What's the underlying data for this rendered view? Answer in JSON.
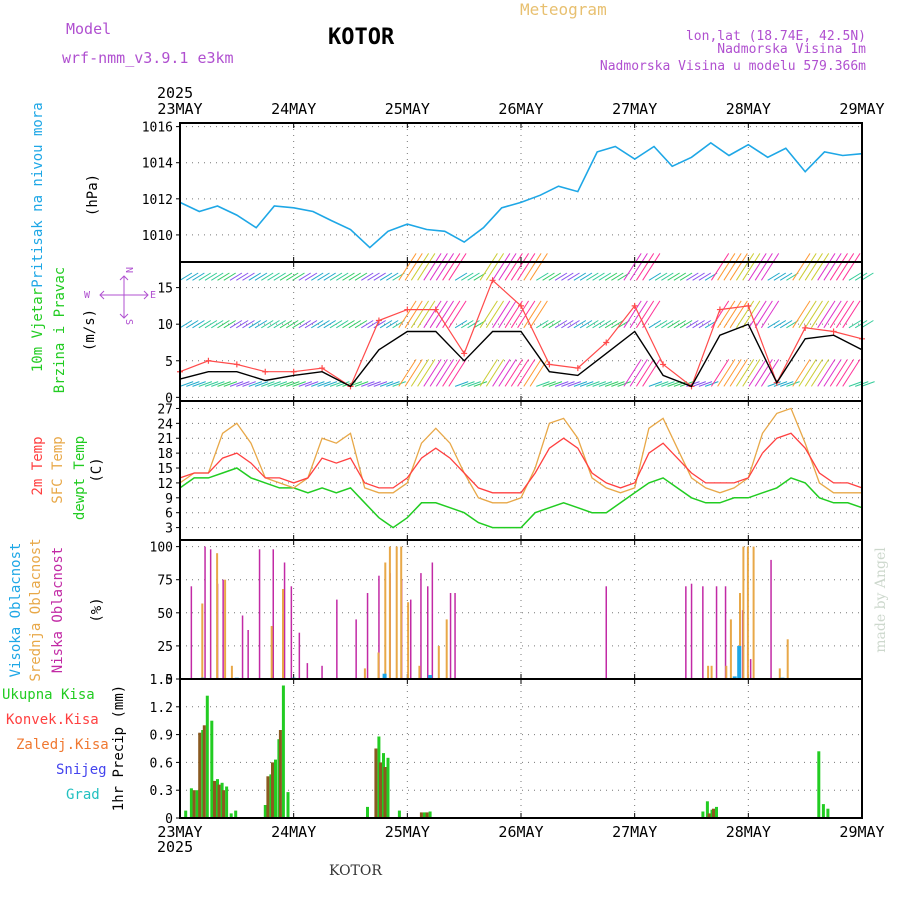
{
  "header": {
    "model_label": "Model",
    "model_name": "wrf-nmm_v3.9.1  e3km",
    "title": "KOTOR",
    "product": "Meteogram",
    "lonlat": "lon,lat (18.74E, 42.5N)",
    "elevation": "Nadmorska Visina 1m",
    "model_elevation": "Nadmorska Visina u modelu 579.366m",
    "footer_title": "KOTOR",
    "credit": "made by Angel"
  },
  "colors": {
    "pressure": "#1ea7e6",
    "wind": "#000000",
    "gust": "#ff4b4b",
    "temp2m": "#ff4040",
    "sfc": "#e8a848",
    "dewpt": "#22cc22",
    "cloud_high": "#1ea7e6",
    "cloud_mid": "#e8a848",
    "cloud_low": "#c22aa5",
    "precip_total": "#22cc22",
    "precip_conv": "#ff4040",
    "precip_frz": "#f07830",
    "precip_snow": "#4444ee",
    "precip_grad": "#22c0c0",
    "title_purple": "#b050d0",
    "meteogram_gold": "#e8c070"
  },
  "chart_data": [
    {
      "type": "line",
      "name": "pressure",
      "title_lines": [
        "Pritisak na nivou mora",
        "(hPa)"
      ],
      "ylim": [
        1008.5,
        1016.2
      ],
      "yticks": [
        1010,
        1012,
        1014,
        1016
      ],
      "x_days": [
        0,
        0.17,
        0.33,
        0.5,
        0.67,
        0.83,
        1.0,
        1.17,
        1.33,
        1.5,
        1.67,
        1.83,
        2.0,
        2.17,
        2.33,
        2.5,
        2.67,
        2.83,
        3.0,
        3.17,
        3.33,
        3.5,
        3.67,
        3.83,
        4.0,
        4.17,
        4.33,
        4.5,
        4.67,
        4.83,
        5.0,
        5.17,
        5.33,
        5.5,
        5.67,
        5.83,
        6.0
      ],
      "values": [
        1011.8,
        1011.3,
        1011.6,
        1011.1,
        1010.4,
        1011.6,
        1011.5,
        1011.3,
        1010.8,
        1010.3,
        1009.3,
        1010.2,
        1010.6,
        1010.3,
        1010.2,
        1009.6,
        1010.4,
        1011.5,
        1011.8,
        1012.2,
        1012.7,
        1012.4,
        1014.6,
        1014.9,
        1014.2,
        1014.9,
        1013.8,
        1014.3,
        1015.1,
        1014.4,
        1015.0,
        1014.3,
        1014.8,
        1013.5,
        1014.6,
        1014.4,
        1014.5
      ]
    },
    {
      "type": "line",
      "name": "wind",
      "title_lines": [
        "10m Vjetar",
        "Brzina i Pravac",
        "(m/s)"
      ],
      "ylim": [
        -0.5,
        18.5
      ],
      "yticks": [
        0,
        5,
        10,
        15
      ],
      "x_days": [
        0,
        0.25,
        0.5,
        0.75,
        1.0,
        1.25,
        1.5,
        1.75,
        2.0,
        2.25,
        2.5,
        2.75,
        3.0,
        3.25,
        3.5,
        3.75,
        4.0,
        4.25,
        4.5,
        4.75,
        5.0,
        5.25,
        5.5,
        5.75,
        6.0
      ],
      "speed": [
        2.5,
        3.5,
        3.5,
        2.3,
        3.0,
        3.5,
        1.5,
        6.5,
        9.0,
        9.0,
        5.0,
        9.0,
        9.0,
        3.5,
        3.0,
        6.0,
        9.0,
        3.0,
        1.5,
        8.5,
        10.0,
        2.0,
        8.0,
        8.5,
        6.5
      ],
      "gust": [
        3.5,
        5.0,
        4.5,
        3.5,
        3.5,
        4.0,
        1.5,
        10.5,
        12.0,
        12.0,
        6.0,
        16.0,
        12.5,
        4.5,
        4.0,
        7.5,
        12.5,
        4.5,
        1.5,
        12.0,
        12.5,
        2.0,
        9.5,
        9.0,
        8.0
      ],
      "compass": {
        "n": "N",
        "w": "W",
        "e": "E",
        "s": "S"
      }
    },
    {
      "type": "line",
      "name": "temperature",
      "title_lines": [
        "2m Temp",
        "SFC Temp",
        "dewpt Temp",
        "(C)"
      ],
      "ylim": [
        0.5,
        28.5
      ],
      "yticks": [
        3,
        6,
        9,
        12,
        15,
        18,
        21,
        24,
        27
      ],
      "x_days": [
        0,
        0.125,
        0.25,
        0.375,
        0.5,
        0.625,
        0.75,
        0.875,
        1.0,
        1.125,
        1.25,
        1.375,
        1.5,
        1.625,
        1.75,
        1.875,
        2.0,
        2.125,
        2.25,
        2.375,
        2.5,
        2.625,
        2.75,
        2.875,
        3.0,
        3.125,
        3.25,
        3.375,
        3.5,
        3.625,
        3.75,
        3.875,
        4.0,
        4.125,
        4.25,
        4.375,
        4.5,
        4.625,
        4.75,
        4.875,
        5.0,
        5.125,
        5.25,
        5.375,
        5.5,
        5.625,
        5.75,
        5.875,
        6.0
      ],
      "temp2m": [
        13,
        14,
        14,
        17,
        18,
        16,
        13,
        13,
        12,
        13,
        17,
        16,
        17,
        12,
        11,
        11,
        13,
        17,
        19,
        17,
        14,
        11,
        10,
        10,
        10,
        14,
        19,
        21,
        19,
        14,
        12,
        11,
        12,
        18,
        20,
        17,
        14,
        12,
        12,
        12,
        13,
        18,
        21,
        22,
        19,
        14,
        12,
        12,
        11
      ],
      "sfc": [
        12,
        14,
        14,
        22,
        24,
        20,
        13,
        12,
        11,
        13,
        21,
        20,
        22,
        11,
        10,
        10,
        12,
        20,
        23,
        20,
        14,
        9,
        8,
        8,
        9,
        15,
        24,
        25,
        21,
        13,
        11,
        10,
        11,
        23,
        25,
        19,
        13,
        11,
        10,
        11,
        13,
        22,
        26,
        27,
        20,
        12,
        10,
        10,
        10
      ],
      "dewpt": [
        11,
        13,
        13,
        14,
        15,
        13,
        12,
        11,
        11,
        10,
        11,
        10,
        11,
        8,
        5,
        3,
        5,
        8,
        8,
        7,
        6,
        4,
        3,
        3,
        3,
        6,
        7,
        8,
        7,
        6,
        6,
        8,
        10,
        12,
        13,
        11,
        9,
        8,
        8,
        9,
        9,
        10,
        11,
        13,
        12,
        9,
        8,
        8,
        7
      ]
    },
    {
      "type": "bar",
      "name": "clouds",
      "title_lines": [
        "Visoka Oblacnost",
        "Srednja Oblacnost",
        "Niska Oblacnost",
        "(%)"
      ],
      "ylim": [
        0,
        100
      ],
      "yticks": [
        0,
        25,
        50,
        75,
        100
      ],
      "low": [
        [
          0.1,
          70
        ],
        [
          0.22,
          100
        ],
        [
          0.27,
          98
        ],
        [
          0.33,
          72
        ],
        [
          0.38,
          75
        ],
        [
          0.55,
          48
        ],
        [
          0.6,
          37
        ],
        [
          0.7,
          98
        ],
        [
          0.82,
          98
        ],
        [
          0.92,
          88
        ],
        [
          0.98,
          70
        ],
        [
          1.05,
          35
        ],
        [
          1.12,
          12
        ],
        [
          1.25,
          10
        ],
        [
          1.38,
          60
        ],
        [
          1.55,
          45
        ],
        [
          1.65,
          65
        ],
        [
          1.75,
          78
        ],
        [
          1.85,
          80
        ],
        [
          1.95,
          75
        ],
        [
          2.03,
          60
        ],
        [
          2.12,
          80
        ],
        [
          2.18,
          70
        ],
        [
          2.22,
          88
        ],
        [
          2.38,
          65
        ],
        [
          2.42,
          65
        ],
        [
          3.75,
          70
        ],
        [
          4.45,
          70
        ],
        [
          4.5,
          72
        ],
        [
          4.6,
          70
        ],
        [
          4.72,
          70
        ],
        [
          4.8,
          70
        ],
        [
          4.95,
          52
        ],
        [
          5.02,
          15
        ],
        [
          5.2,
          90
        ]
      ],
      "mid": [
        [
          0.17,
          57
        ],
        [
          0.3,
          95
        ],
        [
          0.37,
          75
        ],
        [
          0.43,
          10
        ],
        [
          0.78,
          40
        ],
        [
          0.88,
          68
        ],
        [
          1.6,
          8
        ],
        [
          1.72,
          20
        ],
        [
          1.78,
          88
        ],
        [
          1.82,
          100
        ],
        [
          1.88,
          100
        ],
        [
          1.92,
          100
        ],
        [
          1.98,
          58
        ],
        [
          2.08,
          10
        ],
        [
          2.25,
          25
        ],
        [
          2.32,
          45
        ],
        [
          4.62,
          10
        ],
        [
          4.65,
          10
        ],
        [
          4.78,
          10
        ],
        [
          4.82,
          45
        ],
        [
          4.9,
          65
        ],
        [
          4.93,
          100
        ],
        [
          4.97,
          100
        ],
        [
          5.02,
          100
        ],
        [
          5.25,
          8
        ],
        [
          5.32,
          30
        ]
      ],
      "high": [
        [
          0.02,
          0
        ],
        [
          0.2,
          1
        ],
        [
          0.5,
          1
        ],
        [
          1.0,
          1
        ],
        [
          1.8,
          4
        ],
        [
          2.2,
          3
        ],
        [
          4.88,
          2
        ],
        [
          4.92,
          25
        ],
        [
          5.3,
          1
        ]
      ]
    },
    {
      "type": "bar",
      "name": "precip",
      "title_lines": [
        "Ukupna  Kisa",
        "Konvek.Kisa",
        "Zaledj.Kisa",
        "Snijeg",
        "Grad",
        "1hr Precip (mm)"
      ],
      "ylim": [
        0,
        1.5
      ],
      "yticks": [
        0,
        0.3,
        0.6,
        0.9,
        1.2,
        1.5
      ],
      "ytick_labels": [
        "0",
        "0.3",
        "0.6",
        "0.9",
        "1.2",
        "1.5"
      ],
      "total": [
        [
          0.05,
          0.08
        ],
        [
          0.1,
          0.32
        ],
        [
          0.15,
          0.3
        ],
        [
          0.2,
          0.95
        ],
        [
          0.24,
          1.32
        ],
        [
          0.28,
          1.05
        ],
        [
          0.33,
          0.42
        ],
        [
          0.37,
          0.38
        ],
        [
          0.41,
          0.34
        ],
        [
          0.45,
          0.05
        ],
        [
          0.49,
          0.08
        ],
        [
          0.75,
          0.14
        ],
        [
          0.8,
          0.47
        ],
        [
          0.84,
          0.63
        ],
        [
          0.87,
          0.85
        ],
        [
          0.91,
          1.43
        ],
        [
          0.95,
          0.28
        ],
        [
          1.65,
          0.12
        ],
        [
          1.75,
          0.88
        ],
        [
          1.79,
          0.7
        ],
        [
          1.83,
          0.65
        ],
        [
          1.93,
          0.08
        ],
        [
          2.15,
          0.06
        ],
        [
          2.2,
          0.07
        ],
        [
          4.6,
          0.07
        ],
        [
          4.64,
          0.18
        ],
        [
          4.68,
          0.09
        ],
        [
          4.72,
          0.12
        ],
        [
          5.62,
          0.72
        ],
        [
          5.66,
          0.15
        ],
        [
          5.7,
          0.1
        ]
      ],
      "conv": [
        [
          0.15,
          0.3
        ],
        [
          0.2,
          0.92
        ],
        [
          0.24,
          1.0
        ],
        [
          0.33,
          0.4
        ],
        [
          0.37,
          0.36
        ],
        [
          0.41,
          0.3
        ],
        [
          0.8,
          0.45
        ],
        [
          0.84,
          0.6
        ],
        [
          0.91,
          0.95
        ],
        [
          1.75,
          0.75
        ],
        [
          1.79,
          0.6
        ],
        [
          1.83,
          0.55
        ],
        [
          2.15,
          0.06
        ],
        [
          2.2,
          0.06
        ],
        [
          4.68,
          0.05
        ],
        [
          4.72,
          0.1
        ]
      ]
    }
  ],
  "x_axis": {
    "year": "2025",
    "start_label": "23MAY",
    "day_labels": [
      "23MAY",
      "24MAY",
      "25MAY",
      "26MAY",
      "27MAY",
      "28MAY",
      "29MAY"
    ]
  }
}
